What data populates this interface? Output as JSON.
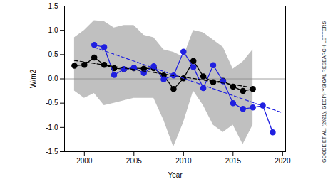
{
  "chart_data": {
    "type": "line",
    "x_label": "Year",
    "y_label": "W/m2",
    "credit": "GOODE ET AL. (2021), GEOPHYSICAL RESEARCH LETTERS",
    "xlim": [
      1998,
      2020.3
    ],
    "xticks": [
      2000,
      2005,
      2010,
      2015,
      2020
    ],
    "ylim": [
      -1.5,
      1.5
    ],
    "yticks": [
      {
        "value": -1.5,
        "label": "-1.5"
      },
      {
        "value": -1.0,
        "label": "-1.0"
      },
      {
        "value": -0.5,
        "label": "-0.5"
      },
      {
        "value": 0,
        "label": "0.0"
      },
      {
        "value": 0.5,
        "label": "0.5"
      },
      {
        "value": 1.0,
        "label": "1.0"
      },
      {
        "value": 1.5,
        "label": "1.5"
      }
    ],
    "reference_y": 0,
    "band": {
      "color": "#c0c0c0",
      "x": [
        1999,
        2000,
        2001,
        2002,
        2003,
        2004,
        2005,
        2006,
        2007,
        2008,
        2009,
        2010,
        2011,
        2012,
        2013,
        2014,
        2015,
        2016,
        2017
      ],
      "lower": [
        -0.25,
        -0.4,
        -0.3,
        -0.55,
        -0.5,
        -0.45,
        -0.4,
        -0.4,
        -0.4,
        -0.85,
        -1.4,
        -0.9,
        -0.25,
        -0.55,
        -0.95,
        -1.1,
        -0.95,
        -1.35,
        -0.95
      ],
      "upper": [
        0.85,
        1.0,
        1.2,
        1.18,
        1.05,
        1.1,
        1.1,
        0.9,
        0.85,
        0.6,
        0.55,
        0.45,
        1.0,
        0.95,
        0.8,
        0.65,
        0.2,
        0.35,
        0.6
      ]
    },
    "series": [
      {
        "color": "#000000",
        "marker": "circle",
        "line_style": "solid",
        "x": [
          1999,
          2000,
          2001,
          2002,
          2003,
          2004,
          2005,
          2006,
          2007,
          2008,
          2009,
          2010,
          2011,
          2012,
          2013,
          2014,
          2015,
          2016,
          2017
        ],
        "values": [
          0.27,
          0.29,
          0.44,
          0.29,
          0.22,
          0.2,
          0.22,
          0.21,
          0.22,
          0.07,
          -0.21,
          0.01,
          0.37,
          0.05,
          -0.07,
          -0.04,
          -0.16,
          -0.25,
          -0.21
        ]
      },
      {
        "color": "#2020e0",
        "marker": "circle",
        "line_style": "solid",
        "x": [
          2001,
          2002,
          2003,
          2004,
          2005,
          2006,
          2007,
          2008,
          2009,
          2010,
          2011,
          2012,
          2013,
          2014,
          2015,
          2016,
          2017,
          2018,
          2019
        ],
        "values": [
          0.7,
          0.65,
          0.08,
          0.2,
          0.23,
          0.12,
          0.26,
          -0.01,
          0.07,
          0.56,
          0.24,
          -0.19,
          0.28,
          -0.05,
          -0.5,
          -0.62,
          -0.59,
          -0.55,
          -1.1
        ]
      },
      {
        "color": "#000000",
        "marker": "none",
        "line_style": "dashed",
        "x": [
          1999,
          2017
        ],
        "values": [
          0.38,
          -0.18
        ]
      },
      {
        "color": "#2020e0",
        "marker": "none",
        "line_style": "dashed",
        "x": [
          2001,
          2020
        ],
        "values": [
          0.65,
          -0.7
        ]
      }
    ]
  }
}
